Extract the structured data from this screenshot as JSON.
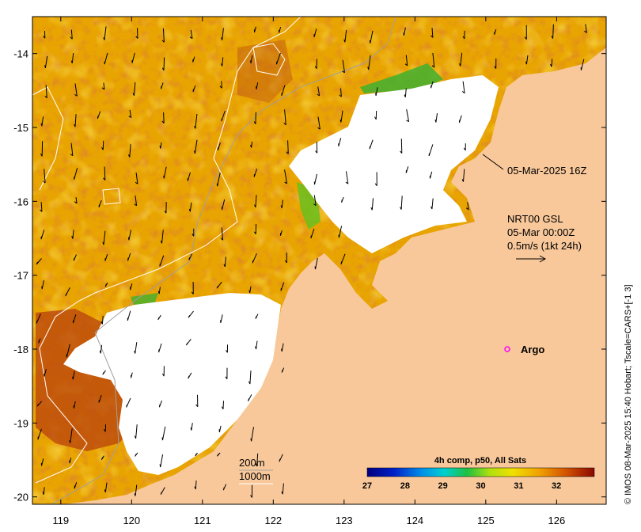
{
  "map": {
    "x_range": [
      118.6,
      126.7
    ],
    "y_range": [
      -20.1,
      -13.5
    ],
    "x_ticks": [
      "119",
      "120",
      "121",
      "122",
      "123",
      "124",
      "125",
      "126"
    ],
    "y_ticks": [
      "-14",
      "-15",
      "-16",
      "-17",
      "-18",
      "-19",
      "-20"
    ]
  },
  "annotations": {
    "satellite_time": "05-Mar-2025 16Z",
    "current_source": "NRT00 GSL",
    "current_time": "05-Mar 00:00Z",
    "current_scale": "0.5m/s (1kt 24h)",
    "argo_label": "Argo",
    "depth_1": "200m",
    "depth_2": "1000m"
  },
  "colorbar": {
    "title": "4h comp, p50, All Sats",
    "ticks": [
      "27",
      "28",
      "29",
      "30",
      "31",
      "32"
    ],
    "range": [
      27,
      33
    ]
  },
  "credit": "© IMOS 08-Mar-2025 15:40 Hobart; Tscale=CARS+[-1 3]",
  "colors": {
    "land": "#f8c89a",
    "cloud": "#ffffff",
    "sst_warm": "#e8a400",
    "sst_hot": "#b8420c",
    "sst_cool": "#f0c010",
    "argo": "#ff00ff"
  }
}
